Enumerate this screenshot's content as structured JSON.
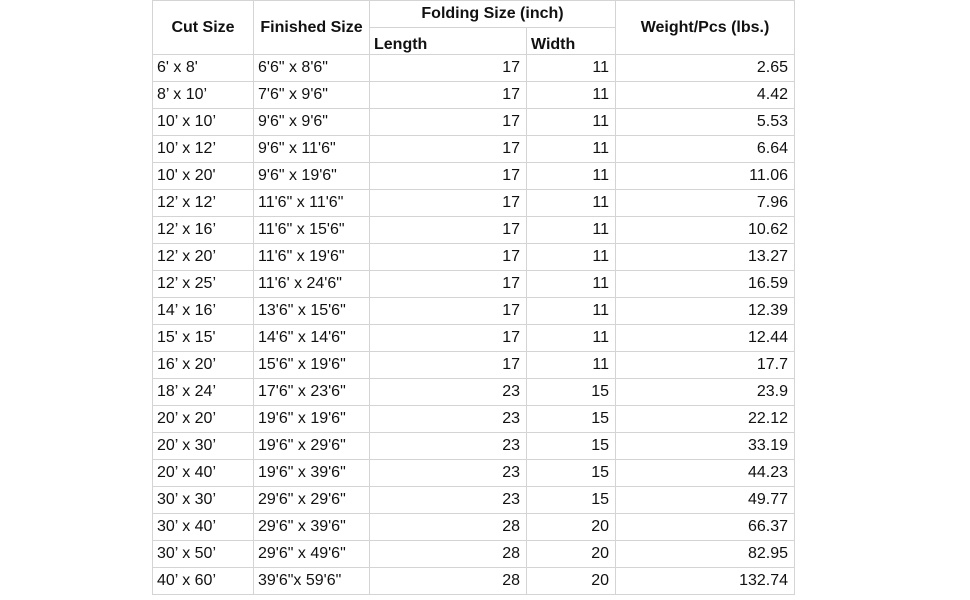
{
  "headers": {
    "cut": "Cut Size",
    "finished": "Finished Size",
    "folding": "Folding Size (inch)",
    "length": "Length",
    "width": "Width",
    "weight": "Weight/Pcs (lbs.)"
  },
  "rows": [
    [
      "6' x 8'",
      "6'6\" x 8'6\"",
      "17",
      "11",
      "2.65"
    ],
    [
      "8’ x 10’",
      "7'6\" x 9'6\"",
      "17",
      "11",
      "4.42"
    ],
    [
      "10’ x 10’",
      "9'6\" x 9'6\"",
      "17",
      "11",
      "5.53"
    ],
    [
      "10’ x 12’",
      "9'6\" x 11'6\"",
      "17",
      "11",
      "6.64"
    ],
    [
      "10' x 20'",
      "9'6\" x 19'6\"",
      "17",
      "11",
      "11.06"
    ],
    [
      "12’ x 12’",
      "11'6\" x 11'6\"",
      "17",
      "11",
      "7.96"
    ],
    [
      "12’ x 16’",
      "11'6\" x 15'6\"",
      "17",
      "11",
      "10.62"
    ],
    [
      "12’ x 20’",
      "11'6\" x 19'6\"",
      "17",
      "11",
      "13.27"
    ],
    [
      "12’ x 25’",
      "11'6' x 24'6\"",
      "17",
      "11",
      "16.59"
    ],
    [
      "14’ x 16’",
      "13'6\" x 15'6\"",
      "17",
      "11",
      "12.39"
    ],
    [
      "15' x 15'",
      "14'6\" x 14'6\"",
      "17",
      "11",
      "12.44"
    ],
    [
      "16’ x 20’",
      "15'6\" x 19'6\"",
      "17",
      "11",
      "17.7"
    ],
    [
      "18’ x 24’",
      "17'6\" x 23'6\"",
      "23",
      "15",
      "23.9"
    ],
    [
      "20’ x 20’",
      "19'6\" x 19'6\"",
      "23",
      "15",
      "22.12"
    ],
    [
      "20’ x 30’",
      "19'6\" x 29'6\"",
      "23",
      "15",
      "33.19"
    ],
    [
      "20’ x 40’",
      "19'6\" x 39'6\"",
      "23",
      "15",
      "44.23"
    ],
    [
      "30’ x 30’",
      "29'6\" x 29'6\"",
      "23",
      "15",
      "49.77"
    ],
    [
      "30’ x 40’",
      "29'6\" x 39'6\"",
      "28",
      "20",
      "66.37"
    ],
    [
      "30’ x 50’",
      "29'6\" x 49'6\"",
      "28",
      "20",
      "82.95"
    ],
    [
      "40’ x 60’",
      "39'6\"x 59'6\"",
      "28",
      "20",
      "132.74"
    ]
  ]
}
